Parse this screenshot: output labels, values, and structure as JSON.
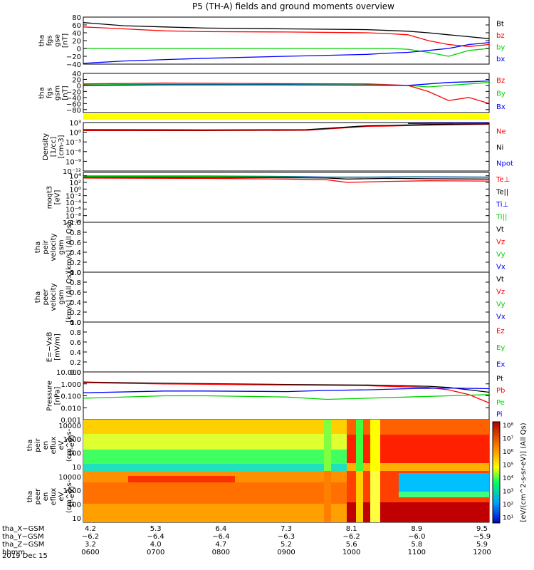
{
  "title": "P5 (TH-A) fields and ground moments overview",
  "date_label": "2019 Dec 15",
  "colors": {
    "black": "#000000",
    "red": "#ff0000",
    "green": "#00d000",
    "blue": "#0000ff",
    "yellow": "#ffff00"
  },
  "chart_data": [
    {
      "id": "fgs_gse",
      "type": "line",
      "ylabel": [
        "tha",
        "fgs",
        "gse",
        "[nT]"
      ],
      "ylim": [
        -40,
        80
      ],
      "yticks": [
        "80",
        "60",
        "40",
        "20",
        "0",
        "−20",
        "−40"
      ],
      "yticks_values": [
        80,
        60,
        40,
        20,
        0,
        -20,
        -40
      ],
      "series": [
        {
          "name": "Bt",
          "color": "#000000",
          "x": [
            0,
            0.1,
            0.2,
            0.3,
            0.5,
            0.7,
            0.75,
            0.8,
            0.85,
            0.9,
            0.95,
            1.0
          ],
          "values": [
            66,
            58,
            55,
            52,
            50,
            48,
            46,
            44,
            40,
            35,
            30,
            25
          ]
        },
        {
          "name": "bz",
          "color": "#ff0000",
          "x": [
            0,
            0.1,
            0.2,
            0.3,
            0.5,
            0.7,
            0.75,
            0.8,
            0.85,
            0.9,
            0.95,
            1.0
          ],
          "values": [
            55,
            50,
            45,
            43,
            42,
            40,
            38,
            35,
            20,
            10,
            5,
            10
          ]
        },
        {
          "name": "by",
          "color": "#00d000",
          "x": [
            0,
            0.1,
            0.3,
            0.5,
            0.7,
            0.75,
            0.8,
            0.85,
            0.9,
            0.95,
            1.0
          ],
          "values": [
            0,
            0,
            0,
            0,
            0,
            0,
            -2,
            -10,
            -20,
            -5,
            0
          ]
        },
        {
          "name": "bx",
          "color": "#0000ff",
          "x": [
            0,
            0.1,
            0.3,
            0.5,
            0.7,
            0.75,
            0.8,
            0.85,
            0.9,
            0.95,
            1.0
          ],
          "values": [
            -38,
            -32,
            -25,
            -20,
            -15,
            -12,
            -10,
            -5,
            0,
            10,
            15
          ]
        }
      ]
    },
    {
      "id": "fgs_gsm",
      "type": "line",
      "ylabel": [
        "tha",
        "fgs",
        "gsm",
        "[nT]"
      ],
      "ylim": [
        -90,
        40
      ],
      "yticks": [
        "40",
        "20",
        "0",
        "−20",
        "−40",
        "−60",
        "−80"
      ],
      "yticks_values": [
        40,
        20,
        0,
        -20,
        -40,
        -60,
        -80
      ],
      "series": [
        {
          "name": "Bz",
          "color": "#ff0000",
          "x": [
            0,
            0.2,
            0.5,
            0.7,
            0.8,
            0.85,
            0.9,
            0.95,
            1.0
          ],
          "values": [
            5,
            8,
            6,
            5,
            0,
            -20,
            -50,
            -40,
            -60
          ]
        },
        {
          "name": "By",
          "color": "#00d000",
          "x": [
            0,
            0.2,
            0.5,
            0.7,
            0.8,
            0.85,
            0.9,
            0.95,
            1.0
          ],
          "values": [
            2,
            4,
            3,
            2,
            0,
            -5,
            0,
            5,
            10
          ]
        },
        {
          "name": "Bx",
          "color": "#0000ff",
          "x": [
            0,
            0.2,
            0.5,
            0.7,
            0.8,
            0.85,
            0.9,
            0.95,
            1.0
          ],
          "values": [
            0,
            2,
            2,
            1,
            0,
            5,
            10,
            12,
            15
          ]
        }
      ]
    },
    {
      "id": "density",
      "type": "line",
      "scale": "log",
      "ylabel": [
        "Density",
        "[1/cc]",
        "[cm-3]"
      ],
      "ylim": [
        -12,
        3
      ],
      "yticks": [
        "10³",
        "10⁰",
        "10⁻³",
        "10⁻⁶",
        "10⁻⁹",
        "10⁻¹²"
      ],
      "yticks_values": [
        3,
        0,
        -3,
        -6,
        -9,
        -12
      ],
      "series": [
        {
          "name": "Ne",
          "color": "#ff0000",
          "x": [
            0,
            0.3,
            0.55,
            0.6,
            0.7,
            0.75,
            0.85,
            1.0
          ],
          "values": [
            0.5,
            0.5,
            0.6,
            1.0,
            1.8,
            1.9,
            2.2,
            2.5
          ]
        },
        {
          "name": "Ni",
          "color": "#000000",
          "x": [
            0,
            0.3,
            0.55,
            0.6,
            0.7,
            0.75,
            0.85,
            1.0
          ],
          "values": [
            0.8,
            0.7,
            0.8,
            1.2,
            2.0,
            2.1,
            2.4,
            2.6
          ]
        },
        {
          "name": "Npot",
          "color": "#0000ff",
          "x": [
            0.8,
            1.0
          ],
          "values": [
            2.7,
            2.9
          ]
        }
      ]
    },
    {
      "id": "temperature",
      "type": "line",
      "scale": "log",
      "ylabel": [
        "moqt3",
        "[eV]"
      ],
      "ylim": [
        -10,
        5
      ],
      "yticks": [
        "10⁴",
        "10²",
        "10⁰",
        "10⁻²",
        "10⁻⁴",
        "10⁻⁶",
        "10⁻⁸",
        "10⁻¹⁰"
      ],
      "yticks_values": [
        4,
        2,
        0,
        -2,
        -4,
        -6,
        -8,
        -10
      ],
      "series": [
        {
          "name": "Te⊥",
          "color": "#ff0000",
          "x": [
            0,
            0.3,
            0.5,
            0.6,
            0.65,
            0.75,
            0.85,
            1.0
          ],
          "values": [
            3.3,
            3.2,
            3.0,
            2.8,
            2.0,
            2.3,
            2.5,
            2.4
          ]
        },
        {
          "name": "Te||",
          "color": "#000000",
          "x": [
            0,
            0.3,
            0.5,
            0.6,
            0.65,
            0.75,
            0.85,
            1.0
          ],
          "values": [
            3.6,
            3.5,
            3.4,
            3.3,
            3.0,
            3.2,
            3.1,
            3.0
          ]
        },
        {
          "name": "Ti⊥",
          "color": "#0000ff",
          "x": [
            0,
            0.3,
            0.5,
            0.6,
            0.7,
            0.8,
            1.0
          ],
          "values": [
            3.9,
            3.9,
            3.8,
            3.6,
            3.6,
            3.7,
            3.6
          ]
        },
        {
          "name": "Ti||",
          "color": "#00d000",
          "x": [
            0,
            0.3,
            0.5,
            0.6,
            0.7,
            0.8,
            1.0
          ],
          "values": [
            3.8,
            3.8,
            3.7,
            3.5,
            3.5,
            3.6,
            3.5
          ]
        }
      ]
    },
    {
      "id": "peir_velocity",
      "type": "line",
      "ylabel": [
        "tha",
        "peir",
        "velocity",
        "gsm",
        "[km/s] (All Qs)"
      ],
      "ylim": [
        0,
        1
      ],
      "yticks": [
        "1.0",
        "0.8",
        "0.6",
        "0.4",
        "0.2",
        "0.0"
      ],
      "yticks_values": [
        1,
        0.8,
        0.6,
        0.4,
        0.2,
        0
      ],
      "legend": [
        "Vt",
        "Vz",
        "Vy",
        "Vx"
      ],
      "legend_colors": [
        "#000000",
        "#ff0000",
        "#00d000",
        "#0000ff"
      ],
      "series": []
    },
    {
      "id": "peer_velocity",
      "type": "line",
      "ylabel": [
        "tha",
        "peer",
        "velocity",
        "gsm",
        "[km/s] (All Qs)"
      ],
      "ylim": [
        0,
        1
      ],
      "yticks": [
        "1.0",
        "0.8",
        "0.6",
        "0.4",
        "0.2",
        "0.0"
      ],
      "yticks_values": [
        1,
        0.8,
        0.6,
        0.4,
        0.2,
        0
      ],
      "legend": [
        "Vt",
        "Vz",
        "Vy",
        "Vx"
      ],
      "legend_colors": [
        "#000000",
        "#ff0000",
        "#00d000",
        "#0000ff"
      ],
      "series": []
    },
    {
      "id": "efield",
      "type": "line",
      "ylabel": [
        "E=−VxB",
        "[mV/m]"
      ],
      "ylim": [
        0,
        1
      ],
      "yticks": [
        "1.0",
        "0.8",
        "0.6",
        "0.4",
        "0.2",
        "0.0"
      ],
      "yticks_values": [
        1,
        0.8,
        0.6,
        0.4,
        0.2,
        0
      ],
      "legend": [
        "Ez",
        "Ey",
        "Ex"
      ],
      "legend_colors": [
        "#ff0000",
        "#00d000",
        "#0000ff"
      ],
      "series": []
    },
    {
      "id": "pressure",
      "type": "line",
      "scale": "log",
      "ylabel": [
        "Pressure",
        "[nPa]"
      ],
      "ylim": [
        -3,
        1
      ],
      "yticks": [
        "10.000",
        "1.000",
        "0.100",
        "0.010",
        "0.001"
      ],
      "yticks_values": [
        1,
        0,
        -1,
        -2,
        -3
      ],
      "series": [
        {
          "name": "Pt",
          "color": "#000000",
          "x": [
            0,
            0.2,
            0.5,
            0.7,
            0.85,
            0.9,
            0.95,
            1.0
          ],
          "values": [
            0.15,
            0.05,
            -0.05,
            -0.1,
            -0.2,
            -0.3,
            -0.5,
            -0.7
          ]
        },
        {
          "name": "Pb",
          "color": "#ff0000",
          "x": [
            0,
            0.2,
            0.5,
            0.7,
            0.85,
            0.9,
            0.95,
            1.0
          ],
          "values": [
            0.1,
            0.0,
            -0.1,
            -0.15,
            -0.3,
            -0.5,
            -0.9,
            -1.6
          ]
        },
        {
          "name": "Pe",
          "color": "#00d000",
          "x": [
            0,
            0.2,
            0.3,
            0.5,
            0.6,
            0.7,
            0.8,
            0.9,
            1.0
          ],
          "values": [
            -1.2,
            -1.0,
            -1.0,
            -1.1,
            -1.3,
            -1.2,
            -1.1,
            -1.0,
            -0.9
          ]
        },
        {
          "name": "Pi",
          "color": "#0000ff",
          "x": [
            0,
            0.2,
            0.3,
            0.5,
            0.6,
            0.7,
            0.8,
            0.9,
            1.0
          ],
          "values": [
            -0.75,
            -0.6,
            -0.6,
            -0.65,
            -0.55,
            -0.5,
            -0.4,
            -0.35,
            -0.4
          ]
        }
      ]
    },
    {
      "id": "peir_eflux",
      "type": "heatmap",
      "ylabel": [
        "tha",
        "peir",
        "en",
        "eflux",
        "eV",
        "(cm^2-s-",
        "sr-eV)"
      ],
      "yticks": [
        "10000",
        "1000",
        "100",
        "10"
      ],
      "yticks_values": [
        4,
        3,
        2,
        1
      ],
      "ylim": [
        0.7,
        4.4
      ]
    },
    {
      "id": "peer_eflux",
      "type": "heatmap",
      "ylabel": [
        "tha",
        "peer",
        "en",
        "eflux",
        "eV",
        "(cm^2-s-",
        "sr-eV)"
      ],
      "yticks": [
        "10000",
        "1000",
        "100",
        "10"
      ],
      "yticks_values": [
        4,
        3,
        2,
        1
      ],
      "ylim": [
        0.7,
        4.4
      ]
    }
  ],
  "colorbar": {
    "label": "[eV/(cm^2-s-sr-eV)] (All Qs)",
    "ticks": [
      "10⁸",
      "10⁷",
      "10⁶",
      "10⁵",
      "10⁴",
      "10³",
      "10²",
      "10¹"
    ]
  },
  "xaxis": {
    "rows": [
      {
        "label": "tha_X−GSM",
        "values": [
          "4.2",
          "5.3",
          "6.4",
          "7.3",
          "8.1",
          "8.9",
          "9.5"
        ]
      },
      {
        "label": "tha_Y−GSM",
        "values": [
          "−6.2",
          "−6.4",
          "−6.4",
          "−6.3",
          "−6.2",
          "−6.0",
          "−5.9"
        ]
      },
      {
        "label": "tha_Z−GSM",
        "values": [
          "3.2",
          "4.0",
          "4.7",
          "5.2",
          "5.6",
          "5.8",
          "5.9"
        ]
      },
      {
        "label": "hhmm",
        "values": [
          "0600",
          "0700",
          "0800",
          "0900",
          "1000",
          "1100",
          "1200"
        ]
      }
    ]
  }
}
